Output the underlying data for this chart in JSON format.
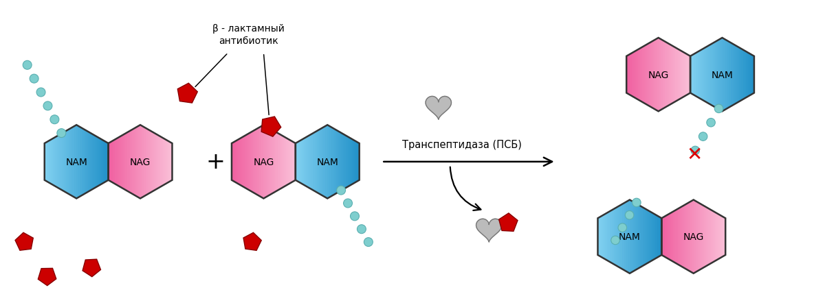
{
  "bg_color": "#ffffff",
  "bead_color": "#7ECECE",
  "bead_edge": "#5AAFB0",
  "red_color": "#CC0000",
  "text_antibiotic": "β - лактамный\nантибиотик",
  "text_transpeptidase": "Транспептидаза (ПСБ)",
  "text_nam": "NAM",
  "text_nag": "NAG",
  "text_plus": "+",
  "figsize": [
    12.0,
    4.27
  ],
  "dpi": 100
}
